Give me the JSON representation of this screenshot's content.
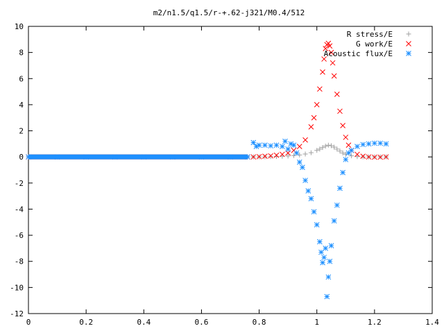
{
  "chart_data": {
    "type": "scatter",
    "title": "m2/n1.5/q1.5/r-+.62-j321/M0.4/512",
    "xlabel": "",
    "ylabel": "",
    "xlim": [
      0,
      1.4
    ],
    "ylim": [
      -12,
      10
    ],
    "x_ticks": [
      0,
      0.2,
      0.4,
      0.6,
      0.8,
      1,
      1.2,
      1.4
    ],
    "x_tick_labels": [
      "0",
      "0.2",
      "0.4",
      "0.6",
      "0.8",
      "1",
      "1.2",
      "1.4"
    ],
    "y_ticks": [
      -12,
      -10,
      -8,
      -6,
      -4,
      -2,
      0,
      2,
      4,
      6,
      8,
      10
    ],
    "y_tick_labels": [
      "-12",
      "-10",
      "-8",
      "-6",
      "-4",
      "-2",
      "0",
      "2",
      "4",
      "6",
      "8",
      "10"
    ],
    "grid": false,
    "legend_position": "top-right",
    "series": [
      {
        "name": "R stress/E",
        "marker": "plus",
        "color": "#a0a0a0",
        "points": [
          [
            0,
            0
          ],
          [
            0.1,
            0
          ],
          [
            0.2,
            0
          ],
          [
            0.3,
            0
          ],
          [
            0.4,
            0
          ],
          [
            0.5,
            0
          ],
          [
            0.6,
            0
          ],
          [
            0.7,
            0
          ],
          [
            0.76,
            0
          ],
          [
            0.78,
            0.0
          ],
          [
            0.8,
            0.0
          ],
          [
            0.82,
            0.01
          ],
          [
            0.84,
            0.02
          ],
          [
            0.86,
            0.03
          ],
          [
            0.88,
            0.05
          ],
          [
            0.9,
            0.07
          ],
          [
            0.92,
            0.1
          ],
          [
            0.94,
            0.15
          ],
          [
            0.96,
            0.22
          ],
          [
            0.98,
            0.32
          ],
          [
            1.0,
            0.5
          ],
          [
            1.01,
            0.6
          ],
          [
            1.02,
            0.72
          ],
          [
            1.03,
            0.83
          ],
          [
            1.04,
            0.9
          ],
          [
            1.05,
            0.86
          ],
          [
            1.06,
            0.75
          ],
          [
            1.07,
            0.6
          ],
          [
            1.08,
            0.45
          ],
          [
            1.09,
            0.3
          ],
          [
            1.1,
            0.2
          ],
          [
            1.12,
            0.08
          ],
          [
            1.14,
            0.02
          ],
          [
            1.16,
            0.0
          ],
          [
            1.18,
            0.0
          ],
          [
            1.2,
            0.0
          ],
          [
            1.22,
            0.0
          ],
          [
            1.24,
            0.0
          ]
        ]
      },
      {
        "name": "G work/E",
        "marker": "cross",
        "color": "#ff0000",
        "points": [
          [
            0,
            0
          ],
          [
            0.1,
            0
          ],
          [
            0.2,
            0
          ],
          [
            0.3,
            0
          ],
          [
            0.4,
            0
          ],
          [
            0.5,
            0
          ],
          [
            0.6,
            0
          ],
          [
            0.7,
            0
          ],
          [
            0.76,
            0
          ],
          [
            0.78,
            0.0
          ],
          [
            0.8,
            0.02
          ],
          [
            0.82,
            0.05
          ],
          [
            0.84,
            0.08
          ],
          [
            0.86,
            0.13
          ],
          [
            0.88,
            0.2
          ],
          [
            0.9,
            0.3
          ],
          [
            0.92,
            0.5
          ],
          [
            0.94,
            0.8
          ],
          [
            0.96,
            1.3
          ],
          [
            0.98,
            2.3
          ],
          [
            0.99,
            3.0
          ],
          [
            1.0,
            4.0
          ],
          [
            1.01,
            5.2
          ],
          [
            1.02,
            6.5
          ],
          [
            1.025,
            7.5
          ],
          [
            1.03,
            8.3
          ],
          [
            1.035,
            8.6
          ],
          [
            1.04,
            8.7
          ],
          [
            1.045,
            8.5
          ],
          [
            1.05,
            8.0
          ],
          [
            1.055,
            7.2
          ],
          [
            1.06,
            6.2
          ],
          [
            1.07,
            4.8
          ],
          [
            1.08,
            3.5
          ],
          [
            1.09,
            2.4
          ],
          [
            1.1,
            1.5
          ],
          [
            1.11,
            0.9
          ],
          [
            1.12,
            0.5
          ],
          [
            1.14,
            0.2
          ],
          [
            1.16,
            0.05
          ],
          [
            1.18,
            0.0
          ],
          [
            1.2,
            -0.02
          ],
          [
            1.22,
            -0.02
          ],
          [
            1.24,
            0.0
          ]
        ]
      },
      {
        "name": "Acoustic flux/E",
        "marker": "star",
        "color": "#1e90ff",
        "points": [
          [
            0,
            0
          ],
          [
            0.1,
            0
          ],
          [
            0.2,
            0
          ],
          [
            0.3,
            0
          ],
          [
            0.4,
            0
          ],
          [
            0.5,
            0
          ],
          [
            0.6,
            0
          ],
          [
            0.7,
            0
          ],
          [
            0.76,
            0
          ],
          [
            0.78,
            1.1
          ],
          [
            0.79,
            0.8
          ],
          [
            0.8,
            0.9
          ],
          [
            0.82,
            0.9
          ],
          [
            0.84,
            0.85
          ],
          [
            0.86,
            0.9
          ],
          [
            0.88,
            0.8
          ],
          [
            0.89,
            1.2
          ],
          [
            0.9,
            0.6
          ],
          [
            0.91,
            1.0
          ],
          [
            0.92,
            0.9
          ],
          [
            0.93,
            0.3
          ],
          [
            0.94,
            -0.4
          ],
          [
            0.95,
            -0.8
          ],
          [
            0.96,
            -1.8
          ],
          [
            0.97,
            -2.6
          ],
          [
            0.98,
            -3.2
          ],
          [
            0.99,
            -4.2
          ],
          [
            1.0,
            -5.2
          ],
          [
            1.01,
            -6.5
          ],
          [
            1.015,
            -7.3
          ],
          [
            1.02,
            -8.1
          ],
          [
            1.025,
            -7.7
          ],
          [
            1.03,
            -7.0
          ],
          [
            1.035,
            -10.7
          ],
          [
            1.04,
            -9.2
          ],
          [
            1.045,
            -8.0
          ],
          [
            1.05,
            -6.8
          ],
          [
            1.06,
            -4.9
          ],
          [
            1.07,
            -3.7
          ],
          [
            1.08,
            -2.4
          ],
          [
            1.09,
            -1.2
          ],
          [
            1.1,
            -0.2
          ],
          [
            1.11,
            0.3
          ],
          [
            1.12,
            0.5
          ],
          [
            1.14,
            0.8
          ],
          [
            1.16,
            0.95
          ],
          [
            1.18,
            1.0
          ],
          [
            1.2,
            1.05
          ],
          [
            1.22,
            1.05
          ],
          [
            1.24,
            1.0
          ]
        ]
      }
    ]
  }
}
